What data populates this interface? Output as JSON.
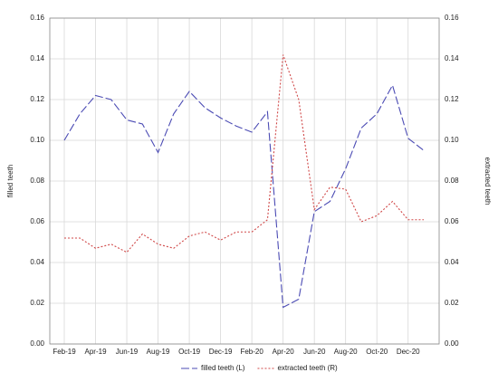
{
  "chart_data": {
    "type": "line",
    "categories": [
      "Feb-19",
      null,
      "Apr-19",
      null,
      "Jun-19",
      null,
      "Aug-19",
      null,
      "Oct-19",
      null,
      "Dec-19",
      null,
      "Feb-20",
      null,
      "Apr-20",
      null,
      "Jun-20",
      null,
      "Aug-20",
      null,
      "Oct-20",
      null,
      "Dec-20",
      null
    ],
    "y_label": "filled teeth",
    "y2_label": "extracted teeth",
    "series": [
      {
        "name": "filled teeth (L)",
        "color": "#4b4bb4",
        "dash": "dashed",
        "values": [
          0.1,
          0.113,
          0.122,
          0.12,
          0.11,
          0.108,
          0.094,
          0.113,
          0.124,
          0.116,
          0.111,
          0.107,
          0.104,
          0.114,
          0.018,
          0.022,
          0.065,
          0.07,
          0.086,
          0.106,
          0.113,
          0.127,
          0.101,
          0.095
        ]
      },
      {
        "name": "extracted teeth (R)",
        "color": "#d04848",
        "dash": "dotted",
        "axis": "y2",
        "values": [
          0.052,
          0.052,
          0.047,
          0.049,
          0.045,
          0.054,
          0.049,
          0.047,
          0.053,
          0.055,
          0.051,
          0.055,
          0.055,
          0.061,
          0.142,
          0.12,
          0.066,
          0.077,
          0.076,
          0.06,
          0.063,
          0.07,
          0.061,
          0.061
        ]
      }
    ],
    "ylim": [
      0,
      0.16
    ],
    "yticks": [
      {
        "value": 0,
        "label": "0.00"
      },
      {
        "value": 0.02,
        "label": "0.02"
      },
      {
        "value": 0.04,
        "label": "0.04"
      },
      {
        "value": 0.06,
        "label": "0.06"
      },
      {
        "value": 0.08,
        "label": "0.08"
      },
      {
        "value": 0.1,
        "label": "0.10"
      },
      {
        "value": 0.12,
        "label": "0.12"
      },
      {
        "value": 0.14,
        "label": "0.14"
      },
      {
        "value": 0.16,
        "label": "0.16"
      }
    ],
    "y2lim": [
      0,
      0.16
    ],
    "y2ticks": [
      {
        "value": 0,
        "label": "0.00"
      },
      {
        "value": 0.02,
        "label": "0.02"
      },
      {
        "value": 0.04,
        "label": "0.04"
      },
      {
        "value": 0.06,
        "label": "0.06"
      },
      {
        "value": 0.08,
        "label": "0.08"
      },
      {
        "value": 0.1,
        "label": "0.10"
      },
      {
        "value": 0.12,
        "label": "0.12"
      },
      {
        "value": 0.14,
        "label": "0.14"
      },
      {
        "value": 0.16,
        "label": "0.16"
      }
    ],
    "grid": true,
    "legend": "bottom"
  }
}
